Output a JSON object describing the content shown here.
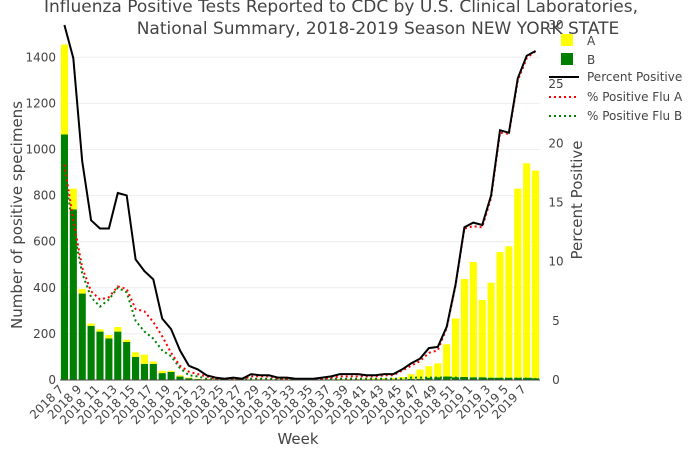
{
  "chart_data": {
    "type": "bar",
    "title_line1": "Influenza Positive Tests Reported to CDC by U.S. Clinical Laboratories,",
    "title_line2": "National Summary, 2018-2019 Season NEW YORK STATE",
    "xlabel": "Week",
    "ylabel": "Number of positive specimens",
    "y2label": "Percent Positive",
    "ylim": [
      0,
      1540
    ],
    "y2lim": [
      0,
      30
    ],
    "yticks": [
      0,
      200,
      400,
      600,
      800,
      1000,
      1200,
      1400
    ],
    "y2ticks": [
      0,
      5,
      10,
      15,
      20,
      25,
      30
    ],
    "barmode": "stack",
    "legend_position": "top-right",
    "grid": true,
    "colors": {
      "A": "#ffff00",
      "B": "#008000",
      "percent_positive": "#000000",
      "flu_a": "#ff0000",
      "flu_b": "#008000"
    },
    "categories": [
      "2018 7",
      "2018 8",
      "2018 9",
      "2018 10",
      "2018 11",
      "2018 12",
      "2018 13",
      "2018 14",
      "2018 15",
      "2018 16",
      "2018 17",
      "2018 18",
      "2018 19",
      "2018 20",
      "2018 21",
      "2018 22",
      "2018 23",
      "2018 24",
      "2018 25",
      "2018 26",
      "2018 27",
      "2018 28",
      "2018 29",
      "2018 30",
      "2018 31",
      "2018 32",
      "2018 33",
      "2018 34",
      "2018 35",
      "2018 36",
      "2018 37",
      "2018 38",
      "2018 39",
      "2018 40",
      "2018 41",
      "2018 42",
      "2018 43",
      "2018 44",
      "2018 45",
      "2018 46",
      "2018 47",
      "2018 48",
      "2018 49",
      "2018 50",
      "2018 51",
      "2018 52",
      "2019 1",
      "2019 2",
      "2019 3",
      "2019 4",
      "2019 5",
      "2019 6",
      "2019 7",
      "2019 8"
    ],
    "tick_labels": [
      "2018 7",
      "2018 9",
      "2018 11",
      "2018 13",
      "2018 15",
      "2018 17",
      "2018 19",
      "2018 21",
      "2018 23",
      "2018 25",
      "2018 27",
      "2018 29",
      "2018 31",
      "2018 33",
      "2018 35",
      "2018 37",
      "2018 39",
      "2018 41",
      "2018 43",
      "2018 45",
      "2018 47",
      "2018 49",
      "2018 51",
      "2019 1",
      "2019 3",
      "2019 5",
      "2019 7"
    ],
    "series": [
      {
        "name": "A",
        "kind": "bar",
        "axis": "left",
        "values": [
          390,
          90,
          20,
          10,
          10,
          15,
          20,
          10,
          20,
          40,
          10,
          10,
          5,
          5,
          3,
          2,
          1,
          1,
          1,
          1,
          1,
          1,
          1,
          1,
          1,
          1,
          1,
          1,
          1,
          1,
          1,
          2,
          2,
          2,
          3,
          4,
          5,
          6,
          10,
          20,
          40,
          50,
          60,
          140,
          255,
          425,
          500,
          335,
          412,
          545,
          570,
          820,
          930,
          900
        ]
      },
      {
        "name": "B",
        "kind": "bar",
        "axis": "left",
        "values": [
          1065,
          740,
          375,
          235,
          210,
          180,
          210,
          165,
          100,
          70,
          70,
          30,
          35,
          15,
          8,
          4,
          3,
          2,
          2,
          2,
          2,
          2,
          2,
          2,
          2,
          2,
          2,
          1,
          1,
          1,
          2,
          2,
          2,
          2,
          2,
          2,
          3,
          3,
          3,
          5,
          5,
          10,
          12,
          15,
          12,
          13,
          12,
          12,
          10,
          10,
          10,
          10,
          10,
          8
        ]
      },
      {
        "name": "Percent Positive",
        "kind": "line",
        "axis": "right",
        "values": [
          30,
          27.2,
          18.5,
          13.5,
          12.8,
          12.8,
          15.8,
          15.6,
          10.2,
          9.2,
          8.5,
          5.2,
          4.3,
          2.5,
          1.2,
          0.9,
          0.4,
          0.2,
          0.1,
          0.2,
          0.1,
          0.5,
          0.4,
          0.4,
          0.2,
          0.2,
          0.1,
          0.1,
          0.1,
          0.2,
          0.3,
          0.5,
          0.5,
          0.5,
          0.4,
          0.4,
          0.5,
          0.5,
          0.9,
          1.4,
          1.8,
          2.7,
          2.8,
          4.5,
          8.1,
          12.9,
          13.3,
          13.1,
          15.6,
          21.1,
          20.9,
          25.5,
          27.4,
          27.8
        ]
      },
      {
        "name": "% Positive Flu A",
        "kind": "line",
        "dash": "dot",
        "axis": "right",
        "values": [
          18.2,
          13.5,
          9.5,
          7.5,
          6.8,
          7.0,
          7.9,
          7.7,
          6.0,
          5.8,
          4.9,
          3.7,
          2.3,
          1.2,
          0.7,
          0.5,
          0.3,
          0.1,
          0.05,
          0.1,
          0.05,
          0.3,
          0.3,
          0.3,
          0.15,
          0.1,
          0.05,
          0.05,
          0.05,
          0.1,
          0.2,
          0.3,
          0.3,
          0.3,
          0.3,
          0.3,
          0.4,
          0.4,
          0.8,
          1.2,
          1.6,
          2.3,
          2.5,
          4.4,
          8.0,
          12.8,
          13.0,
          12.9,
          15.4,
          20.9,
          20.8,
          25.3,
          27.2,
          27.8
        ]
      },
      {
        "name": "% Positive Flu B",
        "kind": "line",
        "dash": "dot",
        "axis": "right",
        "values": [
          17.5,
          12.8,
          9.0,
          7.0,
          6.2,
          6.8,
          7.8,
          7.4,
          5.0,
          4.1,
          3.5,
          2.5,
          2.0,
          1.0,
          0.4,
          0.3,
          0.1,
          0.05,
          0.05,
          0.05,
          0.05,
          0.1,
          0.1,
          0.1,
          0.05,
          0.05,
          0.05,
          0.05,
          0.05,
          0.05,
          0.1,
          0.1,
          0.1,
          0.1,
          0.1,
          0.1,
          0.1,
          0.1,
          0.1,
          0.2,
          0.2,
          0.2,
          0.2,
          0.2,
          0.2,
          0.1,
          0.1,
          0.1,
          0.1,
          0.1,
          0.1,
          0.1,
          0.1,
          0.1
        ]
      }
    ],
    "legend_labels": [
      "A",
      "B",
      "Percent Positive",
      "% Positive Flu A",
      "% Positive Flu B"
    ]
  }
}
